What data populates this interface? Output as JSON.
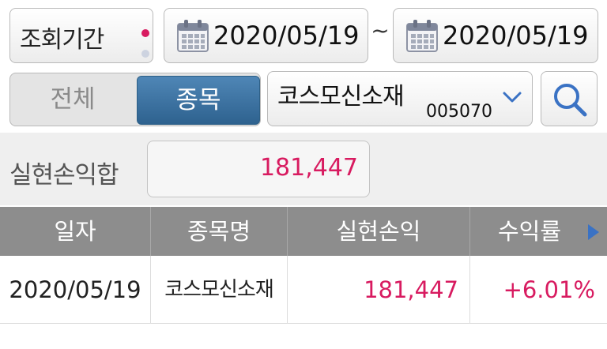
{
  "period": {
    "label": "조회기간",
    "start_date": "2020/05/19",
    "separator": "~",
    "end_date": "2020/05/19"
  },
  "type_toggle": {
    "all_label": "전체",
    "stock_label": "종목",
    "selected": "종목"
  },
  "stock_select": {
    "name": "코스모신소재",
    "code": "005070"
  },
  "summary": {
    "label": "실현손익합",
    "value": "181,447"
  },
  "table": {
    "headers": [
      "일자",
      "종목명",
      "실현손익",
      "수익률"
    ],
    "rows": [
      {
        "date": "2020/05/19",
        "stock": "코스모신소재",
        "pnl": "181,447",
        "rate": "+6.01%"
      }
    ]
  },
  "colors": {
    "accent_pink": "#d81b60",
    "toggle_active": "#3d75a6",
    "header_gray": "#8d8d8d",
    "icon_blue": "#3a72c4"
  },
  "icons": {
    "calendar": "calendar-icon",
    "chevron": "chevron-down-icon",
    "search": "search-icon",
    "more": "arrow-right-icon"
  }
}
